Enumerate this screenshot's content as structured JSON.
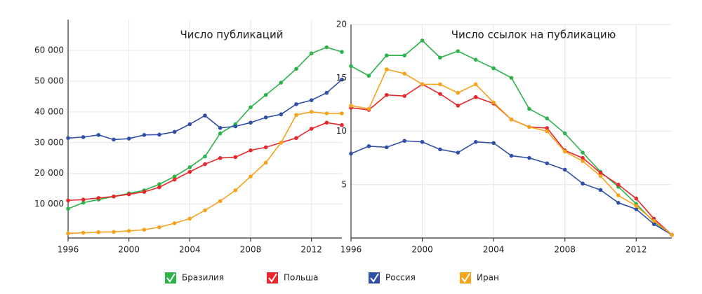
{
  "chart_data": [
    {
      "type": "line",
      "title": "Число публикаций",
      "x": [
        1996,
        1997,
        1998,
        1999,
        2000,
        2001,
        2002,
        2003,
        2004,
        2005,
        2006,
        2007,
        2008,
        2009,
        2010,
        2011,
        2012,
        2013,
        2014
      ],
      "xlim": [
        1996,
        2014
      ],
      "xticks": [
        1996,
        2000,
        2004,
        2008,
        2012
      ],
      "ylim": [
        -1000,
        70000
      ],
      "yticks": [
        {
          "value": 10000,
          "label": "10 000"
        },
        {
          "value": 20000,
          "label": "20 000"
        },
        {
          "value": 30000,
          "label": "30 000"
        },
        {
          "value": 40000,
          "label": "40 000"
        },
        {
          "value": 50000,
          "label": "50 000"
        },
        {
          "value": 60000,
          "label": "60 000"
        }
      ],
      "grid": true,
      "series": [
        {
          "name": "Бразилия",
          "color": "#2db34a",
          "values": [
            8500,
            10500,
            11500,
            12500,
            13500,
            14500,
            16500,
            19000,
            22000,
            25500,
            33000,
            36000,
            41500,
            45500,
            49500,
            54000,
            59000,
            61000,
            59500
          ]
        },
        {
          "name": "Польша",
          "color": "#e8262b",
          "values": [
            11200,
            11500,
            12000,
            12500,
            13200,
            14000,
            15500,
            18000,
            20500,
            23000,
            25000,
            25300,
            27500,
            28500,
            30000,
            31500,
            34500,
            36500,
            35700
          ]
        },
        {
          "name": "Россия",
          "color": "#2f4fa8",
          "values": [
            31500,
            31800,
            32500,
            31000,
            31300,
            32500,
            32600,
            33500,
            36000,
            38800,
            34800,
            35300,
            36500,
            38200,
            39200,
            42500,
            43800,
            46200,
            50500
          ]
        },
        {
          "name": "Иран",
          "color": "#f7a21b",
          "values": [
            500,
            700,
            900,
            1000,
            1300,
            1700,
            2500,
            3800,
            5300,
            8000,
            11000,
            14500,
            19000,
            23500,
            30000,
            39000,
            40000,
            39500,
            39500
          ]
        }
      ]
    },
    {
      "type": "line",
      "title": "Число ссылок на публикацию",
      "x": [
        1996,
        1997,
        1998,
        1999,
        2000,
        2001,
        2002,
        2003,
        2004,
        2005,
        2006,
        2007,
        2008,
        2009,
        2010,
        2011,
        2012,
        2013,
        2014
      ],
      "xlim": [
        1996,
        2014
      ],
      "xticks": [
        1996,
        2000,
        2004,
        2008,
        2012
      ],
      "ylim": [
        0,
        20
      ],
      "yticks": [
        5,
        10,
        15,
        20
      ],
      "grid": true,
      "series": [
        {
          "name": "Бразилия",
          "color": "#2db34a",
          "values": [
            16.1,
            15.2,
            17.1,
            17.1,
            18.5,
            16.9,
            17.5,
            16.7,
            15.9,
            15.0,
            12.1,
            11.2,
            9.8,
            8.0,
            6.2,
            4.8,
            3.2,
            1.5,
            0.3
          ]
        },
        {
          "name": "Польша",
          "color": "#e8262b",
          "values": [
            12.2,
            12.0,
            13.4,
            13.3,
            14.4,
            13.5,
            12.4,
            13.2,
            12.6,
            11.1,
            10.4,
            10.3,
            8.2,
            7.5,
            6.1,
            5.0,
            3.7,
            1.8,
            0.3
          ]
        },
        {
          "name": "Россия",
          "color": "#2f4fa8",
          "values": [
            7.9,
            8.6,
            8.5,
            9.1,
            9.0,
            8.3,
            8.0,
            9.0,
            8.9,
            7.7,
            7.5,
            7.0,
            6.4,
            5.1,
            4.5,
            3.3,
            2.7,
            1.3,
            0.3
          ]
        },
        {
          "name": "Иран",
          "color": "#f7a21b",
          "values": [
            12.4,
            12.1,
            15.8,
            15.4,
            14.4,
            14.4,
            13.6,
            14.4,
            12.7,
            11.1,
            10.4,
            10.0,
            8.1,
            7.2,
            5.8,
            4.0,
            3.0,
            1.6,
            0.3
          ]
        }
      ]
    }
  ]
}
